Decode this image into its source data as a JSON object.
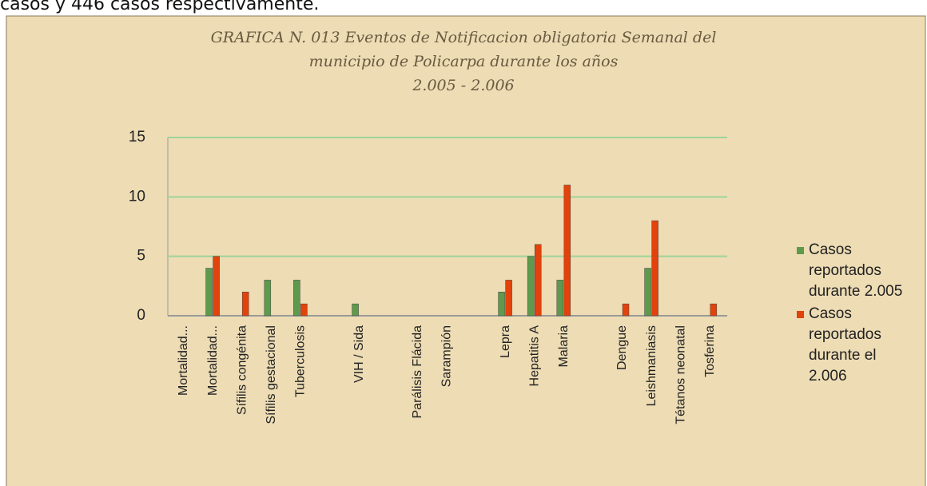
{
  "text_above": "casos y 446 casos respectivamente.",
  "chart_data": {
    "type": "bar",
    "title": [
      "GRAFICA N.  013  Eventos de Notificacion obligatoria Semanal del",
      "municipio de Policarpa durante los años",
      "2.005 - 2.006"
    ],
    "categories": [
      "Mortalidad...",
      "Mortalidad...",
      "Sífilis congénita",
      "Sífilis gestacional",
      "Tuberculosis",
      null,
      "VIH / Sida",
      null,
      "Parálisis Flácida",
      "Sarampión",
      null,
      "Lepra",
      "Hepatitis A",
      "Malaria",
      null,
      "Dengue",
      "Leishmaniasis",
      "Tétanos neonatal",
      "Tosferina"
    ],
    "series": [
      {
        "name": "Casos reportados durante 2.005",
        "color": "#5e9a4c",
        "values": [
          0,
          4,
          0,
          3,
          3,
          null,
          1,
          null,
          0,
          0,
          null,
          2,
          5,
          3,
          null,
          0,
          4,
          0,
          0
        ]
      },
      {
        "name": "Casos reportados durante el 2.006",
        "color": "#e2420c",
        "values": [
          0,
          5,
          2,
          0,
          1,
          null,
          0,
          null,
          0,
          0,
          null,
          3,
          6,
          11,
          null,
          1,
          8,
          0,
          1
        ]
      }
    ],
    "ylim": [
      0,
      15
    ],
    "yticks": [
      0,
      5,
      10,
      15
    ],
    "grid": true,
    "legend": "right"
  }
}
